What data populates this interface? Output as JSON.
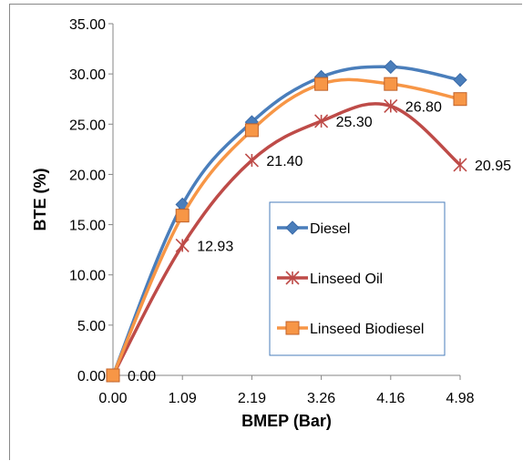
{
  "chart_data": {
    "type": "line",
    "categories": [
      "0.00",
      "1.09",
      "2.19",
      "3.26",
      "4.16",
      "4.98"
    ],
    "xlabel": "BMEP (Bar)",
    "ylabel": "BTE (%)",
    "ylim": [
      0,
      35
    ],
    "yticks": [
      "0.00",
      "5.00",
      "10.00",
      "15.00",
      "20.00",
      "25.00",
      "30.00",
      "35.00"
    ],
    "grid": false,
    "legend_position": "center-right",
    "series": [
      {
        "name": "Diesel",
        "values": [
          0,
          17.0,
          25.2,
          29.7,
          30.7,
          29.4
        ],
        "color": "#4a7ebb",
        "marker": "diamond"
      },
      {
        "name": "Linseed Oil",
        "values": [
          0,
          12.93,
          21.4,
          25.3,
          26.8,
          20.95
        ],
        "color": "#be4b48",
        "marker": "asterisk",
        "data_labels": [
          "0.00",
          "12.93",
          "21.40",
          "25.30",
          "26.80",
          "20.95"
        ]
      },
      {
        "name": "Linseed Biodiesel",
        "values": [
          0,
          15.9,
          24.4,
          29.0,
          29.0,
          27.5
        ],
        "color": "#f79646",
        "marker": "square"
      }
    ]
  }
}
